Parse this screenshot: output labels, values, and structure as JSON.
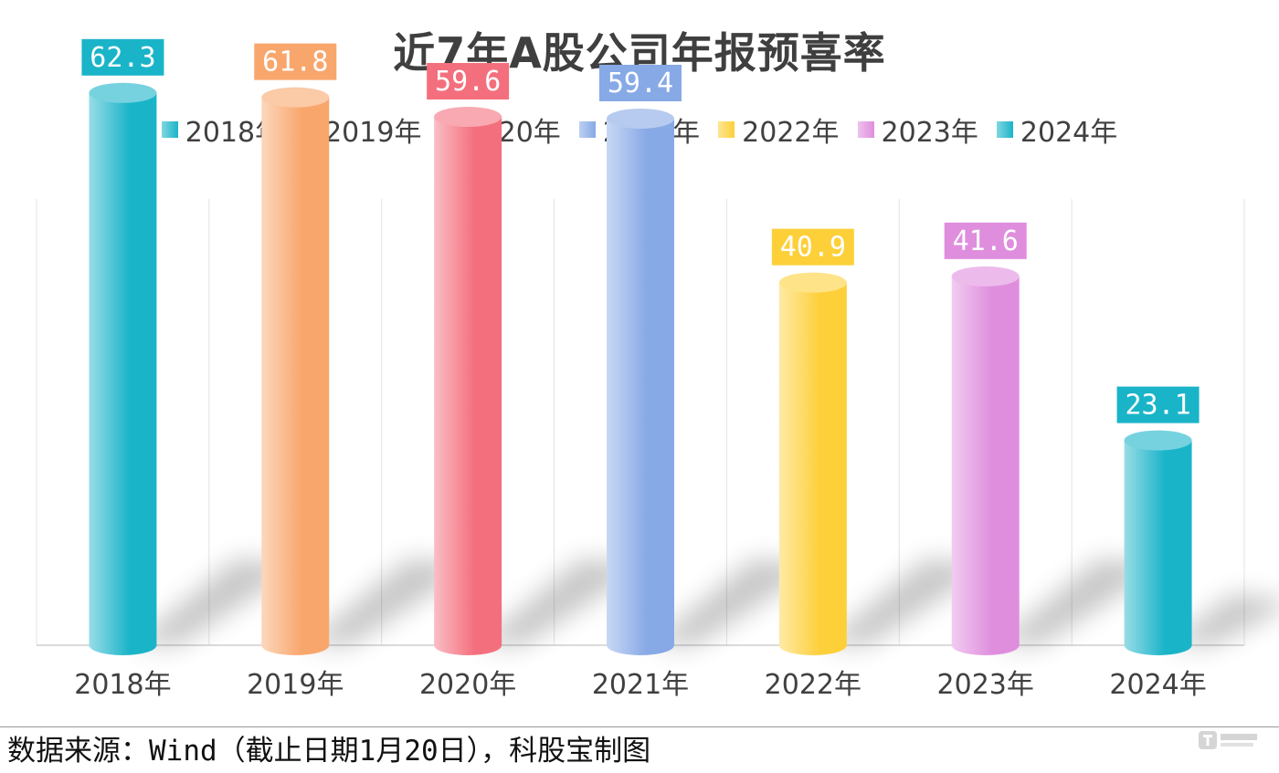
{
  "chart_data": {
    "type": "bar",
    "title": "近7年A股公司年报预喜率",
    "categories": [
      "2018年",
      "2019年",
      "2020年",
      "2021年",
      "2022年",
      "2023年",
      "2024年"
    ],
    "values": [
      62.3,
      61.8,
      59.6,
      59.4,
      40.9,
      41.6,
      23.1
    ],
    "data_labels": [
      "62.3",
      "61.8",
      "59.6",
      "59.4",
      "40.9",
      "41.6",
      "23.1"
    ],
    "legend": [
      "2018年",
      "2019年",
      "2020年",
      "2021年",
      "2022年",
      "2023年",
      "2024年"
    ],
    "legend_position": "top",
    "colors": [
      "#1ab4c9",
      "#f9a66c",
      "#f46f7d",
      "#87a9e6",
      "#fdd03a",
      "#df8ede",
      "#1ab4c9"
    ],
    "xlabel": "",
    "ylabel": "",
    "ylim": [
      0,
      70
    ],
    "grid": "vertical"
  },
  "footer": {
    "source": "数据来源：Wind（截止日期1月20日），科股宝制图"
  }
}
